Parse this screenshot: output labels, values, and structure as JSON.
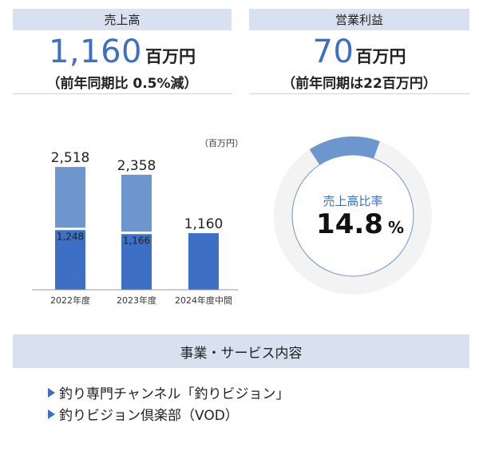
{
  "sales": {
    "header": "売上高",
    "value": "1,160",
    "unit": "百万円",
    "note": "（前年同期比 0.5%減）"
  },
  "profit": {
    "header": "営業利益",
    "value": "70",
    "unit": "百万円",
    "note": "（前年同期は22百万円）"
  },
  "chart_data": [
    {
      "type": "bar",
      "unit_label": "（百万円）",
      "categories": [
        "2022年度",
        "2023年度",
        "2024年度中間"
      ],
      "series": [
        {
          "values": [
            1248,
            1166,
            1160
          ]
        },
        {
          "values": [
            1270,
            1192,
            0
          ]
        }
      ],
      "totals": [
        2518,
        2358,
        1160
      ],
      "total_labels": [
        "2,518",
        "2,358",
        "1,160"
      ],
      "inner_labels": [
        "1,248",
        "1,166",
        ""
      ],
      "stacked": true,
      "ylim": [
        0,
        2700
      ],
      "colors": [
        "#3d6fc4",
        "#6d96cf"
      ]
    },
    {
      "type": "pie",
      "title": "売上高比率",
      "value_text": "14.8",
      "unit": "%",
      "values": [
        14.8,
        85.2
      ],
      "colors": [
        "#6d96cf",
        "#f3f3f3"
      ]
    }
  ],
  "services": {
    "header": "事業・サービス内容",
    "items": [
      "釣り専門チャンネル「釣りビジョン」",
      "釣りビジョン倶楽部（VOD）"
    ]
  },
  "colors": {
    "accent": "#3d6fc4",
    "header_bg": "#d7e1ef"
  }
}
